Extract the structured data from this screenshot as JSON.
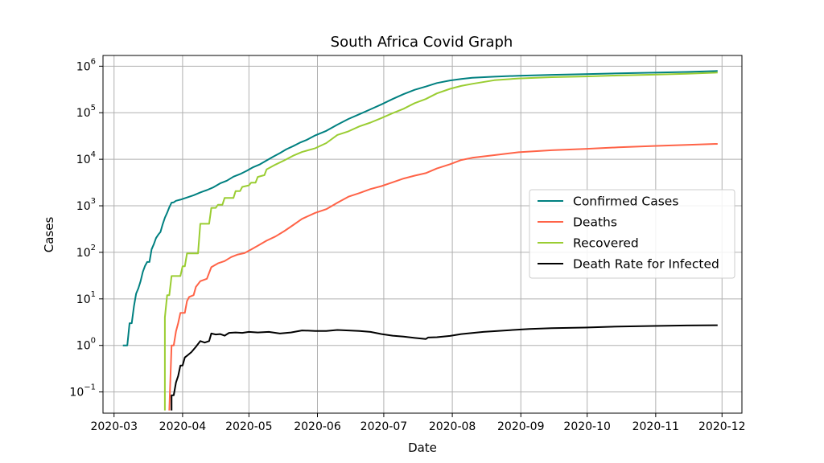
{
  "chart_data": {
    "type": "line",
    "title": "South Africa Covid Graph",
    "xlabel": "Date",
    "ylabel": "Cases",
    "yscale": "log",
    "grid": true,
    "legend_position": "right",
    "x_range": [
      "2020-02-25",
      "2020-12-10"
    ],
    "y_range": [
      0.035,
      1700000
    ],
    "x_ticks": [
      "2020-03",
      "2020-04",
      "2020-05",
      "2020-06",
      "2020-07",
      "2020-08",
      "2020-09",
      "2020-10",
      "2020-11",
      "2020-12"
    ],
    "y_ticks": [
      {
        "base": "10",
        "exp": "−1",
        "value": 0.1
      },
      {
        "base": "10",
        "exp": "0",
        "value": 1
      },
      {
        "base": "10",
        "exp": "1",
        "value": 10
      },
      {
        "base": "10",
        "exp": "2",
        "value": 100
      },
      {
        "base": "10",
        "exp": "3",
        "value": 1000
      },
      {
        "base": "10",
        "exp": "4",
        "value": 10000
      },
      {
        "base": "10",
        "exp": "5",
        "value": 100000
      },
      {
        "base": "10",
        "exp": "6",
        "value": 1000000
      }
    ],
    "series": [
      {
        "name": "Confirmed Cases",
        "color": "#008080",
        "points": [
          [
            "2020-03-05",
            1
          ],
          [
            "2020-03-07",
            1
          ],
          [
            "2020-03-08",
            3
          ],
          [
            "2020-03-09",
            3
          ],
          [
            "2020-03-10",
            7
          ],
          [
            "2020-03-11",
            13
          ],
          [
            "2020-03-12",
            17
          ],
          [
            "2020-03-13",
            24
          ],
          [
            "2020-03-14",
            38
          ],
          [
            "2020-03-15",
            51
          ],
          [
            "2020-03-16",
            62
          ],
          [
            "2020-03-17",
            62
          ],
          [
            "2020-03-18",
            116
          ],
          [
            "2020-03-19",
            150
          ],
          [
            "2020-03-20",
            202
          ],
          [
            "2020-03-21",
            240
          ],
          [
            "2020-03-22",
            274
          ],
          [
            "2020-03-23",
            402
          ],
          [
            "2020-03-24",
            554
          ],
          [
            "2020-03-25",
            709
          ],
          [
            "2020-03-26",
            927
          ],
          [
            "2020-03-27",
            1170
          ],
          [
            "2020-03-28",
            1187
          ],
          [
            "2020-03-29",
            1280
          ],
          [
            "2020-03-31",
            1353
          ],
          [
            "2020-04-03",
            1505
          ],
          [
            "2020-04-06",
            1686
          ],
          [
            "2020-04-09",
            1934
          ],
          [
            "2020-04-12",
            2173
          ],
          [
            "2020-04-15",
            2506
          ],
          [
            "2020-04-18",
            3034
          ],
          [
            "2020-04-21",
            3465
          ],
          [
            "2020-04-24",
            4220
          ],
          [
            "2020-04-27",
            4793
          ],
          [
            "2020-04-30",
            5647
          ],
          [
            "2020-05-03",
            6783
          ],
          [
            "2020-05-06",
            7808
          ],
          [
            "2020-05-09",
            9420
          ],
          [
            "2020-05-12",
            11350
          ],
          [
            "2020-05-15",
            13524
          ],
          [
            "2020-05-18",
            16433
          ],
          [
            "2020-05-21",
            19137
          ],
          [
            "2020-05-24",
            22583
          ],
          [
            "2020-05-27",
            25937
          ],
          [
            "2020-05-31",
            32683
          ],
          [
            "2020-06-05",
            40792
          ],
          [
            "2020-06-10",
            55421
          ],
          [
            "2020-06-15",
            73533
          ],
          [
            "2020-06-20",
            92681
          ],
          [
            "2020-06-25",
            118375
          ],
          [
            "2020-06-30",
            151209
          ],
          [
            "2020-07-05",
            196750
          ],
          [
            "2020-07-10",
            250687
          ],
          [
            "2020-07-15",
            311049
          ],
          [
            "2020-07-20",
            364328
          ],
          [
            "2020-07-25",
            434200
          ],
          [
            "2020-07-31",
            493183
          ],
          [
            "2020-08-05",
            529877
          ],
          [
            "2020-08-10",
            563598
          ],
          [
            "2020-08-20",
            596060
          ],
          [
            "2020-08-31",
            625056
          ],
          [
            "2020-09-15",
            651521
          ],
          [
            "2020-09-30",
            674339
          ],
          [
            "2020-10-15",
            700203
          ],
          [
            "2020-10-31",
            725452
          ],
          [
            "2020-11-15",
            752269
          ],
          [
            "2020-11-29",
            787702
          ]
        ]
      },
      {
        "name": "Deaths",
        "color": "#ff6347",
        "points": [
          [
            "2020-03-26",
            0.04
          ],
          [
            "2020-03-27",
            1
          ],
          [
            "2020-03-28",
            1
          ],
          [
            "2020-03-29",
            2
          ],
          [
            "2020-03-30",
            3
          ],
          [
            "2020-03-31",
            5
          ],
          [
            "2020-04-02",
            5
          ],
          [
            "2020-04-03",
            9
          ],
          [
            "2020-04-04",
            11
          ],
          [
            "2020-04-06",
            12
          ],
          [
            "2020-04-07",
            18
          ],
          [
            "2020-04-09",
            24
          ],
          [
            "2020-04-10",
            25
          ],
          [
            "2020-04-12",
            27
          ],
          [
            "2020-04-14",
            48
          ],
          [
            "2020-04-17",
            58
          ],
          [
            "2020-04-20",
            65
          ],
          [
            "2020-04-23",
            79
          ],
          [
            "2020-04-26",
            90
          ],
          [
            "2020-04-29",
            96
          ],
          [
            "2020-05-02",
            115
          ],
          [
            "2020-05-05",
            138
          ],
          [
            "2020-05-09",
            178
          ],
          [
            "2020-05-13",
            219
          ],
          [
            "2020-05-17",
            286
          ],
          [
            "2020-05-21",
            386
          ],
          [
            "2020-05-25",
            524
          ],
          [
            "2020-05-31",
            705
          ],
          [
            "2020-06-05",
            848
          ],
          [
            "2020-06-10",
            1162
          ],
          [
            "2020-06-15",
            1568
          ],
          [
            "2020-06-20",
            1877
          ],
          [
            "2020-06-25",
            2292
          ],
          [
            "2020-06-30",
            2657
          ],
          [
            "2020-07-05",
            3199
          ],
          [
            "2020-07-10",
            3860
          ],
          [
            "2020-07-15",
            4453
          ],
          [
            "2020-07-20",
            5033
          ],
          [
            "2020-07-25",
            6343
          ],
          [
            "2020-07-31",
            7812
          ],
          [
            "2020-08-05",
            9604
          ],
          [
            "2020-08-10",
            10751
          ],
          [
            "2020-08-20",
            12264
          ],
          [
            "2020-08-31",
            14149
          ],
          [
            "2020-09-15",
            15641
          ],
          [
            "2020-09-30",
            16734
          ],
          [
            "2020-10-15",
            18028
          ],
          [
            "2020-10-31",
            19276
          ],
          [
            "2020-11-15",
            20314
          ],
          [
            "2020-11-29",
            21439
          ]
        ]
      },
      {
        "name": "Recovered",
        "color": "#9acd32",
        "points": [
          [
            "2020-03-24",
            0.04
          ],
          [
            "2020-03-24",
            4
          ],
          [
            "2020-03-25",
            12
          ],
          [
            "2020-03-26",
            12
          ],
          [
            "2020-03-27",
            31
          ],
          [
            "2020-03-31",
            31
          ],
          [
            "2020-04-01",
            50
          ],
          [
            "2020-04-02",
            50
          ],
          [
            "2020-04-03",
            95
          ],
          [
            "2020-04-08",
            95
          ],
          [
            "2020-04-09",
            410
          ],
          [
            "2020-04-13",
            410
          ],
          [
            "2020-04-14",
            903
          ],
          [
            "2020-04-16",
            903
          ],
          [
            "2020-04-17",
            1055
          ],
          [
            "2020-04-19",
            1055
          ],
          [
            "2020-04-20",
            1473
          ],
          [
            "2020-04-24",
            1473
          ],
          [
            "2020-04-25",
            2073
          ],
          [
            "2020-04-27",
            2073
          ],
          [
            "2020-04-28",
            2549
          ],
          [
            "2020-05-01",
            2746
          ],
          [
            "2020-05-02",
            3153
          ],
          [
            "2020-05-04",
            3153
          ],
          [
            "2020-05-05",
            4173
          ],
          [
            "2020-05-08",
            4553
          ],
          [
            "2020-05-09",
            6064
          ],
          [
            "2020-05-13",
            7674
          ],
          [
            "2020-05-17",
            9484
          ],
          [
            "2020-05-21",
            11920
          ],
          [
            "2020-05-25",
            14328
          ],
          [
            "2020-05-31",
            17291
          ],
          [
            "2020-06-05",
            22240
          ],
          [
            "2020-06-10",
            33232
          ],
          [
            "2020-06-15",
            39867
          ],
          [
            "2020-06-20",
            50881
          ],
          [
            "2020-06-25",
            61425
          ],
          [
            "2020-06-30",
            76879
          ],
          [
            "2020-07-05",
            97848
          ],
          [
            "2020-07-10",
            121507
          ],
          [
            "2020-07-15",
            160693
          ],
          [
            "2020-07-20",
            197177
          ],
          [
            "2020-07-25",
            260483
          ],
          [
            "2020-07-31",
            326171
          ],
          [
            "2020-08-05",
            377266
          ],
          [
            "2020-08-10",
            417200
          ],
          [
            "2020-08-20",
            500000
          ],
          [
            "2020-08-31",
            545000
          ],
          [
            "2020-09-15",
            580000
          ],
          [
            "2020-09-30",
            603000
          ],
          [
            "2020-10-15",
            631000
          ],
          [
            "2020-10-31",
            656000
          ],
          [
            "2020-11-15",
            690000
          ],
          [
            "2020-11-29",
            730000
          ]
        ]
      },
      {
        "name": "Death Rate for Infected",
        "color": "#000000",
        "points": [
          [
            "2020-03-27",
            0.04
          ],
          [
            "2020-03-27",
            0.085
          ],
          [
            "2020-03-28",
            0.085
          ],
          [
            "2020-03-29",
            0.16
          ],
          [
            "2020-03-30",
            0.22
          ],
          [
            "2020-03-31",
            0.37
          ],
          [
            "2020-04-01",
            0.37
          ],
          [
            "2020-04-02",
            0.55
          ],
          [
            "2020-04-03",
            0.6
          ],
          [
            "2020-04-05",
            0.72
          ],
          [
            "2020-04-07",
            0.93
          ],
          [
            "2020-04-09",
            1.24
          ],
          [
            "2020-04-11",
            1.15
          ],
          [
            "2020-04-13",
            1.24
          ],
          [
            "2020-04-14",
            1.8
          ],
          [
            "2020-04-16",
            1.72
          ],
          [
            "2020-04-18",
            1.75
          ],
          [
            "2020-04-20",
            1.62
          ],
          [
            "2020-04-22",
            1.86
          ],
          [
            "2020-04-25",
            1.9
          ],
          [
            "2020-04-28",
            1.86
          ],
          [
            "2020-05-01",
            1.95
          ],
          [
            "2020-05-05",
            1.9
          ],
          [
            "2020-05-10",
            1.95
          ],
          [
            "2020-05-15",
            1.8
          ],
          [
            "2020-05-20",
            1.9
          ],
          [
            "2020-05-25",
            2.1
          ],
          [
            "2020-05-31",
            2.05
          ],
          [
            "2020-06-05",
            2.05
          ],
          [
            "2020-06-10",
            2.15
          ],
          [
            "2020-06-15",
            2.1
          ],
          [
            "2020-06-20",
            2.05
          ],
          [
            "2020-06-25",
            1.95
          ],
          [
            "2020-06-30",
            1.75
          ],
          [
            "2020-07-05",
            1.62
          ],
          [
            "2020-07-10",
            1.55
          ],
          [
            "2020-07-15",
            1.45
          ],
          [
            "2020-07-20",
            1.37
          ],
          [
            "2020-07-21",
            1.48
          ],
          [
            "2020-07-25",
            1.5
          ],
          [
            "2020-07-31",
            1.6
          ],
          [
            "2020-08-05",
            1.75
          ],
          [
            "2020-08-15",
            1.95
          ],
          [
            "2020-08-25",
            2.1
          ],
          [
            "2020-09-05",
            2.25
          ],
          [
            "2020-09-15",
            2.35
          ],
          [
            "2020-09-30",
            2.42
          ],
          [
            "2020-10-15",
            2.55
          ],
          [
            "2020-10-31",
            2.62
          ],
          [
            "2020-11-15",
            2.68
          ],
          [
            "2020-11-29",
            2.72
          ]
        ]
      }
    ]
  }
}
